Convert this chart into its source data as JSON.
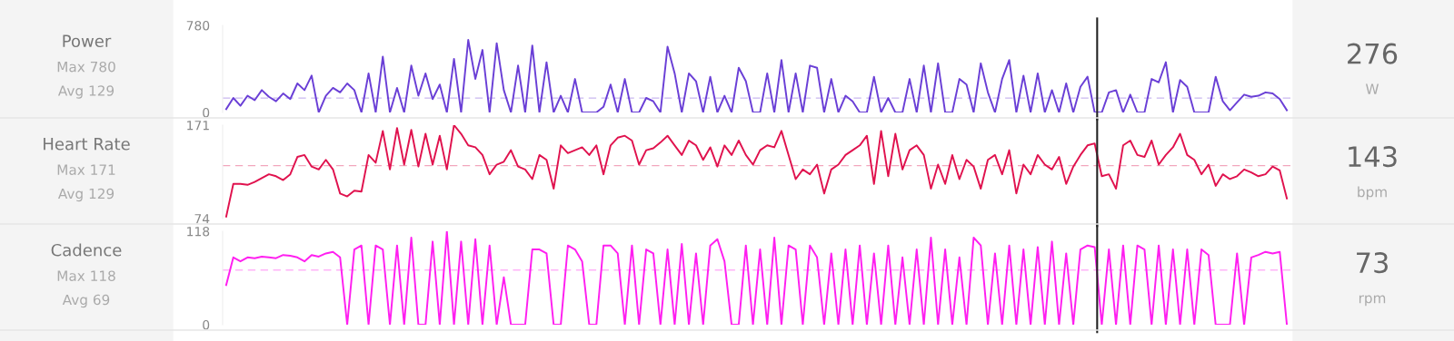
{
  "chart_data": [
    {
      "type": "line",
      "title": "Power",
      "annotations": [
        "Max 780",
        "Avg 129",
        "276",
        "W"
      ],
      "categories": [
        null,
        null,
        null,
        null,
        null,
        null,
        null,
        null,
        null,
        null,
        null,
        null,
        null,
        null,
        null,
        null,
        null,
        null,
        null,
        null,
        null,
        null,
        null,
        null,
        null,
        null,
        null,
        null,
        null,
        null,
        null,
        null,
        null,
        null,
        null,
        null,
        null,
        null,
        null,
        null,
        null,
        null,
        null,
        null,
        null,
        null,
        null,
        null,
        null,
        null,
        null,
        null,
        null,
        null,
        null,
        null,
        null,
        null,
        null,
        null,
        null,
        null,
        null,
        null,
        null,
        null,
        null,
        null,
        null,
        null,
        null,
        null,
        null,
        null,
        null,
        null,
        null,
        null,
        null,
        null,
        null,
        null,
        null,
        null,
        null,
        null,
        null,
        null,
        null,
        null,
        null,
        null,
        null,
        null,
        null,
        null,
        null,
        null,
        null,
        null,
        null,
        null,
        null,
        null,
        null,
        null,
        null,
        null,
        null,
        null,
        null,
        null,
        null,
        null,
        null,
        null,
        null,
        null,
        null,
        null,
        null,
        null,
        null,
        null,
        null,
        null,
        null,
        null,
        null,
        null,
        null,
        null,
        null,
        null,
        null,
        null,
        null,
        null,
        null,
        null,
        null,
        null,
        null,
        null,
        null,
        null,
        null,
        null,
        null,
        null
      ],
      "series": [
        {
          "color": "#6a3fd6",
          "values": [
            30,
            130,
            60,
            150,
            110,
            200,
            140,
            100,
            170,
            120,
            260,
            200,
            330,
            0,
            150,
            220,
            180,
            260,
            200,
            0,
            350,
            0,
            500,
            0,
            220,
            0,
            420,
            150,
            350,
            120,
            250,
            0,
            480,
            0,
            650,
            300,
            560,
            0,
            620,
            200,
            0,
            420,
            0,
            600,
            0,
            450,
            0,
            150,
            0,
            300,
            0,
            0,
            0,
            50,
            250,
            0,
            300,
            0,
            0,
            130,
            100,
            0,
            590,
            350,
            0,
            350,
            280,
            0,
            320,
            0,
            150,
            0,
            400,
            280,
            0,
            0,
            350,
            0,
            470,
            0,
            350,
            0,
            420,
            400,
            0,
            300,
            0,
            150,
            100,
            0,
            0,
            320,
            0,
            130,
            0,
            0,
            300,
            0,
            420,
            0,
            440,
            0,
            0,
            300,
            250,
            0,
            440,
            180,
            0,
            300,
            470,
            0,
            330,
            0,
            350,
            0,
            200,
            0,
            260,
            0,
            230,
            320,
            0,
            0,
            180,
            200,
            0,
            160,
            0,
            0,
            300,
            270,
            450,
            0,
            290,
            230,
            0,
            0,
            0,
            320,
            100,
            20,
            90,
            160,
            140,
            150,
            180,
            170,
            120,
            20
          ]
        }
      ],
      "ylim": [
        0,
        780
      ],
      "yticks": [
        0,
        780
      ],
      "tick_labels": "y",
      "ref_lines": [
        {
          "axis": "y",
          "value": 129,
          "color": "#c9b8f0",
          "line_style": "dashed"
        }
      ]
    },
    {
      "type": "line",
      "title": "Heart Rate",
      "annotations": [
        "Max 171",
        "Avg 129",
        "143",
        "bpm"
      ],
      "categories": [
        null,
        null,
        null,
        null,
        null,
        null,
        null,
        null,
        null,
        null,
        null,
        null,
        null,
        null,
        null,
        null,
        null,
        null,
        null,
        null,
        null,
        null,
        null,
        null,
        null,
        null,
        null,
        null,
        null,
        null,
        null,
        null,
        null,
        null,
        null,
        null,
        null,
        null,
        null,
        null,
        null,
        null,
        null,
        null,
        null,
        null,
        null,
        null,
        null,
        null,
        null,
        null,
        null,
        null,
        null,
        null,
        null,
        null,
        null,
        null,
        null,
        null,
        null,
        null,
        null,
        null,
        null,
        null,
        null,
        null,
        null,
        null,
        null,
        null,
        null,
        null,
        null,
        null,
        null,
        null,
        null,
        null,
        null,
        null,
        null,
        null,
        null,
        null,
        null,
        null,
        null,
        null,
        null,
        null,
        null,
        null,
        null,
        null,
        null,
        null,
        null,
        null,
        null,
        null,
        null,
        null,
        null,
        null,
        null,
        null,
        null,
        null,
        null,
        null,
        null,
        null,
        null,
        null,
        null,
        null,
        null,
        null,
        null,
        null,
        null,
        null,
        null,
        null,
        null,
        null,
        null,
        null,
        null,
        null,
        null,
        null,
        null,
        null,
        null,
        null,
        null,
        null,
        null,
        null,
        null,
        null,
        null,
        null,
        null,
        null
      ],
      "series": [
        {
          "color": "#e0124e",
          "values": [
            76,
            110,
            110,
            109,
            112,
            116,
            120,
            118,
            114,
            120,
            138,
            140,
            128,
            125,
            135,
            125,
            100,
            97,
            103,
            102,
            140,
            132,
            165,
            125,
            168,
            130,
            166,
            128,
            162,
            130,
            160,
            125,
            171,
            162,
            150,
            148,
            140,
            120,
            130,
            133,
            145,
            128,
            125,
            115,
            140,
            135,
            105,
            150,
            142,
            145,
            148,
            140,
            150,
            120,
            150,
            158,
            160,
            155,
            130,
            145,
            147,
            153,
            160,
            150,
            140,
            155,
            150,
            135,
            148,
            128,
            150,
            140,
            155,
            140,
            130,
            145,
            150,
            148,
            165,
            140,
            115,
            125,
            120,
            130,
            100,
            125,
            130,
            140,
            145,
            150,
            160,
            110,
            165,
            118,
            162,
            125,
            145,
            150,
            140,
            105,
            130,
            110,
            140,
            115,
            135,
            128,
            105,
            135,
            140,
            120,
            145,
            100,
            130,
            120,
            140,
            130,
            125,
            138,
            110,
            128,
            140,
            150,
            152,
            118,
            120,
            105,
            150,
            155,
            140,
            138,
            155,
            130,
            140,
            148,
            162,
            140,
            135,
            120,
            130,
            108,
            120,
            115,
            118,
            125,
            122,
            118,
            120,
            128,
            124,
            95
          ]
        }
      ],
      "ylim": [
        74,
        171
      ],
      "yticks": [
        74,
        171
      ],
      "tick_labels": "y",
      "ref_lines": [
        {
          "axis": "y",
          "value": 129,
          "color": "#f2a6bd",
          "line_style": "dashed"
        }
      ]
    },
    {
      "type": "line",
      "title": "Cadence",
      "annotations": [
        "Max 118",
        "Avg 69",
        "73",
        "rpm"
      ],
      "categories": [
        null,
        null,
        null,
        null,
        null,
        null,
        null,
        null,
        null,
        null,
        null,
        null,
        null,
        null,
        null,
        null,
        null,
        null,
        null,
        null,
        null,
        null,
        null,
        null,
        null,
        null,
        null,
        null,
        null,
        null,
        null,
        null,
        null,
        null,
        null,
        null,
        null,
        null,
        null,
        null,
        null,
        null,
        null,
        null,
        null,
        null,
        null,
        null,
        null,
        null,
        null,
        null,
        null,
        null,
        null,
        null,
        null,
        null,
        null,
        null,
        null,
        null,
        null,
        null,
        null,
        null,
        null,
        null,
        null,
        null,
        null,
        null,
        null,
        null,
        null,
        null,
        null,
        null,
        null,
        null,
        null,
        null,
        null,
        null,
        null,
        null,
        null,
        null,
        null,
        null,
        null,
        null,
        null,
        null,
        null,
        null,
        null,
        null,
        null,
        null,
        null,
        null,
        null,
        null,
        null,
        null,
        null,
        null,
        null,
        null,
        null,
        null,
        null,
        null,
        null,
        null,
        null,
        null,
        null,
        null,
        null,
        null,
        null,
        null,
        null,
        null,
        null,
        null,
        null,
        null,
        null,
        null,
        null,
        null,
        null,
        null,
        null,
        null,
        null,
        null,
        null,
        null,
        null,
        null,
        null,
        null,
        null,
        null,
        null,
        null
      ],
      "series": [
        {
          "color": "#ff1ff0",
          "values": [
            50,
            85,
            80,
            85,
            84,
            86,
            85,
            84,
            88,
            87,
            85,
            80,
            88,
            86,
            90,
            92,
            85,
            0,
            95,
            100,
            0,
            100,
            95,
            0,
            100,
            0,
            110,
            0,
            0,
            105,
            0,
            118,
            0,
            105,
            0,
            108,
            0,
            100,
            0,
            60,
            0,
            0,
            0,
            95,
            95,
            90,
            0,
            0,
            100,
            95,
            80,
            0,
            0,
            100,
            100,
            90,
            0,
            100,
            0,
            95,
            90,
            0,
            95,
            0,
            102,
            0,
            90,
            0,
            100,
            108,
            80,
            0,
            0,
            100,
            0,
            95,
            0,
            110,
            0,
            100,
            95,
            0,
            100,
            85,
            0,
            90,
            0,
            95,
            0,
            100,
            0,
            90,
            0,
            100,
            0,
            85,
            0,
            95,
            0,
            110,
            0,
            95,
            0,
            85,
            0,
            110,
            100,
            0,
            90,
            0,
            100,
            0,
            95,
            0,
            98,
            0,
            105,
            0,
            90,
            0,
            95,
            100,
            98,
            0,
            95,
            0,
            100,
            0,
            100,
            95,
            0,
            100,
            0,
            95,
            0,
            95,
            0,
            95,
            88,
            0,
            0,
            0,
            90,
            0,
            85,
            88,
            92,
            90,
            92,
            0
          ]
        }
      ],
      "ylim": [
        0,
        118
      ],
      "yticks": [
        0,
        118
      ],
      "tick_labels": "y",
      "ref_lines": [
        {
          "axis": "y",
          "value": 69,
          "color": "#ffb3f8",
          "line_style": "dashed"
        }
      ]
    }
  ]
}
